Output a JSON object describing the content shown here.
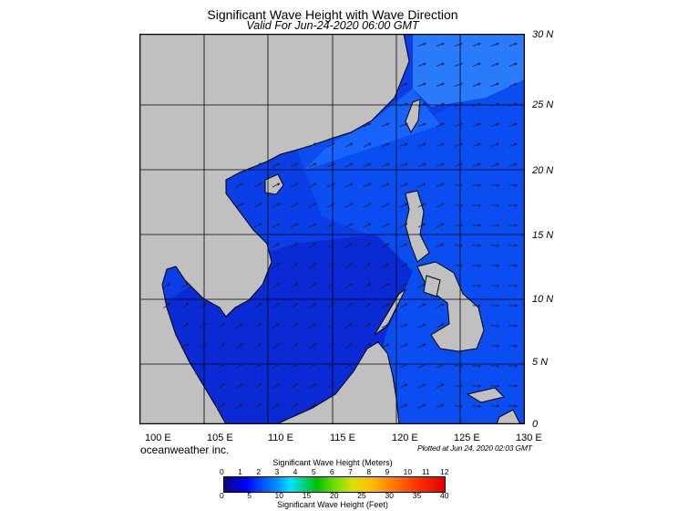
{
  "title": "Significant Wave Height with Wave Direction",
  "subtitle": "Valid For Jun-24-2020 06:00 GMT",
  "lat_labels": [
    "30 N",
    "25 N",
    "20 N",
    "15 N",
    "10 N",
    "5 N",
    "0"
  ],
  "lon_labels": [
    "100 E",
    "105 E",
    "110 E",
    "115 E",
    "120 E",
    "125 E",
    "130 E"
  ],
  "credit": "oceanweather inc.",
  "plotted": "Plotted at Jun 24, 2020 02:03 GMT",
  "colorbar": {
    "title_top": "Significant Wave Height (Meters)",
    "title_bottom": "Significant Wave Height (Feet)",
    "meters_ticks": [
      "0",
      "1",
      "2",
      "3",
      "4",
      "5",
      "6",
      "7",
      "8",
      "9",
      "10",
      "11",
      "12"
    ],
    "feet_ticks": [
      "0",
      "5",
      "10",
      "15",
      "20",
      "25",
      "30",
      "35",
      "40"
    ]
  },
  "colors": {
    "land": "#c0c0c0",
    "sea_low": "#0a2ad8",
    "sea_mid": "#0a4cf0",
    "sea_high": "#2080ff"
  }
}
